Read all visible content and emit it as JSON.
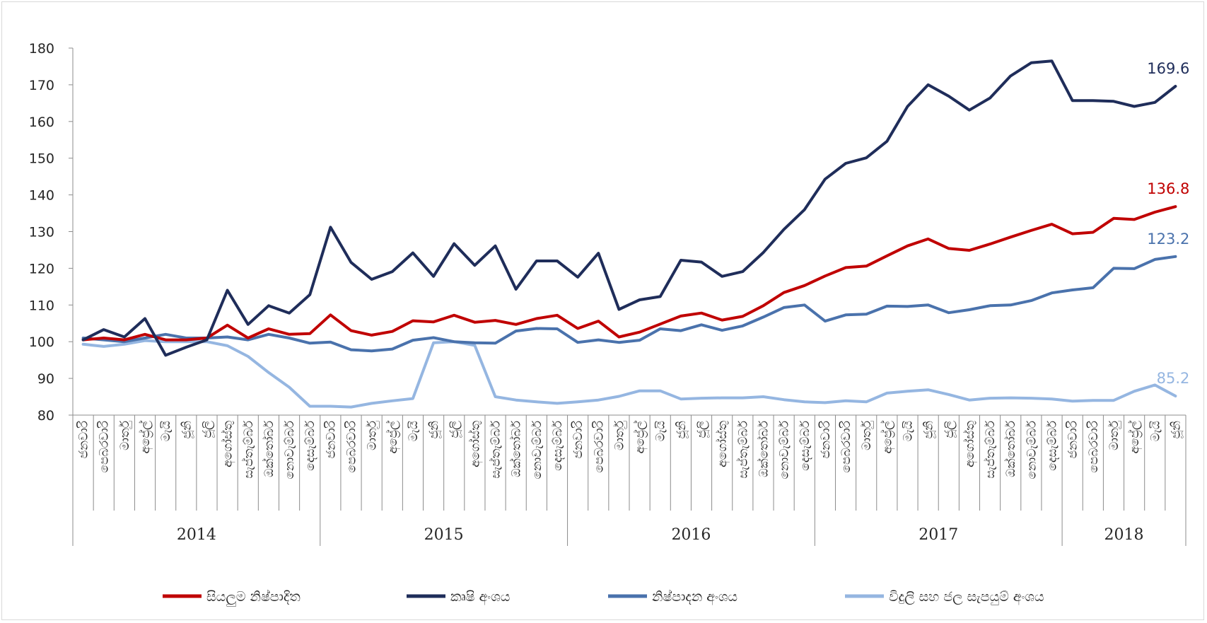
{
  "chart_data": {
    "type": "line",
    "title": "",
    "xlabel": "",
    "ylabel": "",
    "ylim": [
      80,
      180
    ],
    "yticks": [
      80,
      90,
      100,
      110,
      120,
      130,
      140,
      150,
      160,
      170,
      180
    ],
    "grid": false,
    "legend_position": "bottom",
    "years": [
      {
        "label": "2014",
        "start": 0,
        "end": 11
      },
      {
        "label": "2015",
        "start": 12,
        "end": 23
      },
      {
        "label": "2016",
        "start": 24,
        "end": 35
      },
      {
        "label": "2017",
        "start": 36,
        "end": 47
      },
      {
        "label": "2018",
        "start": 48,
        "end": 53
      }
    ],
    "categories": [
      "ජනවාරි",
      "පෙබරවාරි",
      "මාර්තු",
      "අප්‍රේල්",
      "මැයි",
      "ජූනි",
      "ජූලි",
      "අගෝස්තු",
      "සැප්තැම්බර්",
      "ඔක්තෝබර්",
      "නොවැම්බර්",
      "දෙසැම්බර්",
      "ජනවාරි",
      "පෙබරවාරි",
      "මාර්තු",
      "අප්‍රේල්",
      "මැයි",
      "ජූනි",
      "ජූලි",
      "අගෝස්තු",
      "සැප්තැම්බර්",
      "ඔක්තෝබර්",
      "නොවැම්බර්",
      "දෙසැම්බර්",
      "ජනවාරි",
      "පෙබරවාරි",
      "මාර්තු",
      "අප්‍රේල්",
      "මැයි",
      "ජූනි",
      "ජූලි",
      "අගෝස්තු",
      "සැප්තැම්බර්",
      "ඔක්තෝබර්",
      "නොවැම්බර්",
      "දෙසැම්බර්",
      "ජනවාරි",
      "පෙබරවාරි",
      "මාර්තු",
      "අප්‍රේල්",
      "මැයි",
      "ජූනි",
      "ජූලි",
      "අගෝස්තු",
      "සැප්තැම්බර්",
      "ඔක්තෝබර්",
      "නොවැම්බර්",
      "දෙසැම්බර්",
      "ජනවාරි",
      "පෙබරවාරි",
      "මාර්තු",
      "අප්‍රේල්",
      "මැයි",
      "ජූනි"
    ],
    "series": [
      {
        "name": "සියලුම නිෂ්පාදිත",
        "color": "#c00000",
        "end_label": "136.8",
        "values": [
          100.5,
          101.0,
          100.5,
          102.0,
          100.5,
          100.5,
          101.0,
          104.5,
          101.0,
          103.5,
          102.0,
          102.2,
          107.3,
          103.0,
          101.8,
          102.8,
          105.7,
          105.4,
          107.2,
          105.3,
          105.8,
          104.7,
          106.3,
          107.2,
          103.6,
          105.6,
          101.3,
          102.6,
          104.8,
          107.0,
          107.8,
          105.9,
          106.9,
          109.8,
          113.4,
          115.3,
          117.9,
          120.2,
          120.6,
          123.4,
          126.1,
          128.0,
          125.4,
          124.9,
          126.6,
          128.5,
          130.3,
          132.0,
          129.4,
          129.8,
          133.6,
          133.3,
          135.3,
          136.8
        ]
      },
      {
        "name": "කෘෂි අංශය",
        "color": "#1f2d5a",
        "end_label": "169.6",
        "values": [
          100.5,
          103.3,
          101.3,
          106.3,
          96.3,
          98.5,
          100.5,
          114.0,
          104.7,
          109.8,
          107.8,
          112.8,
          131.2,
          121.6,
          117.0,
          119.1,
          124.2,
          117.8,
          126.7,
          120.8,
          126.1,
          114.3,
          122.0,
          122.0,
          117.6,
          124.1,
          108.8,
          111.4,
          112.3,
          122.2,
          121.7,
          117.8,
          119.1,
          124.3,
          130.6,
          136.0,
          144.3,
          148.6,
          150.1,
          154.6,
          164.1,
          170.0,
          166.9,
          163.1,
          166.4,
          172.4,
          176.0,
          176.5,
          165.7,
          165.7,
          165.5,
          164.1,
          165.2,
          169.6
        ]
      },
      {
        "name": "නිෂ්පාදන අංශය",
        "color": "#4a72ac",
        "end_label": "123.2",
        "values": [
          101.0,
          100.5,
          100.0,
          101.0,
          102.0,
          101.0,
          101.0,
          101.3,
          100.5,
          102.0,
          101.0,
          99.6,
          99.9,
          97.8,
          97.5,
          98.0,
          100.4,
          101.1,
          100.0,
          99.7,
          99.6,
          102.9,
          103.6,
          103.5,
          99.8,
          100.5,
          99.8,
          100.4,
          103.5,
          103.0,
          104.6,
          103.1,
          104.3,
          106.7,
          109.3,
          110.0,
          105.6,
          107.3,
          107.5,
          109.7,
          109.6,
          110.0,
          107.9,
          108.7,
          109.8,
          110.0,
          111.2,
          113.3,
          114.1,
          114.7,
          120.0,
          119.9,
          122.4,
          123.2
        ]
      },
      {
        "name": "විදුලි සහ ජල සැපයුම් අංශය",
        "color": "#95b6e1",
        "end_label": "85.2",
        "values": [
          99.3,
          98.7,
          99.3,
          100.3,
          100.0,
          100.0,
          100.0,
          98.9,
          96.0,
          91.6,
          87.6,
          82.4,
          82.4,
          82.2,
          83.2,
          83.9,
          84.5,
          99.7,
          100.0,
          99.0,
          85.0,
          84.1,
          83.6,
          83.2,
          83.6,
          84.1,
          85.1,
          86.6,
          86.6,
          84.4,
          84.6,
          84.7,
          84.7,
          85.0,
          84.2,
          83.6,
          83.4,
          83.9,
          83.6,
          86.0,
          86.5,
          86.9,
          85.6,
          84.1,
          84.6,
          84.7,
          84.6,
          84.4,
          83.8,
          84.0,
          84.0,
          86.5,
          88.2,
          85.2
        ]
      }
    ]
  }
}
